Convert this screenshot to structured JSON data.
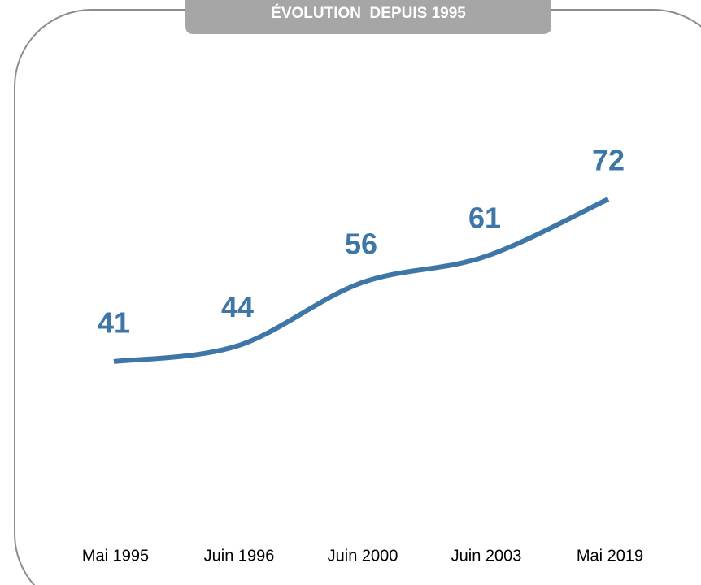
{
  "chart_data": {
    "type": "line",
    "title": "ÉVOLUTION  DEPUIS 1995",
    "categories": [
      "Mai 1995",
      "Juin 1996",
      "Juin 2000",
      "Juin 2003",
      "Mai 2019"
    ],
    "values": [
      41,
      44,
      56,
      61,
      72
    ],
    "color": "#3e76a8"
  }
}
